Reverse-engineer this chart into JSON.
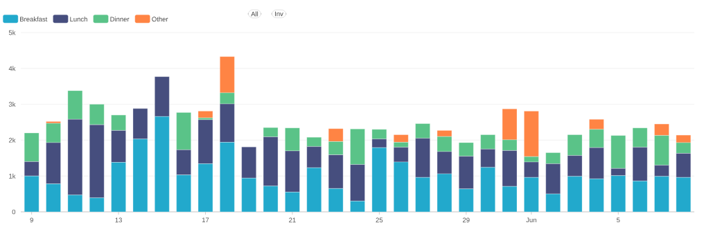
{
  "chart_data": {
    "type": "bar",
    "stacked": true,
    "categories": [
      "9",
      null,
      null,
      null,
      "13",
      null,
      null,
      null,
      "17",
      null,
      null,
      null,
      "21",
      null,
      null,
      null,
      "25",
      null,
      null,
      null,
      "29",
      null,
      null,
      "Jun",
      null,
      null,
      null,
      "5",
      null,
      null,
      null
    ],
    "series": [
      {
        "name": "Breakfast",
        "color": "#22a9cc",
        "values": [
          1000,
          780,
          470,
          390,
          1380,
          2030,
          2660,
          1030,
          1340,
          1940,
          940,
          720,
          550,
          1230,
          650,
          300,
          1790,
          1390,
          960,
          1060,
          640,
          1240,
          710,
          960,
          500,
          990,
          920,
          1010,
          860,
          990,
          960
        ]
      },
      {
        "name": "Lunch",
        "color": "#464e7e",
        "values": [
          400,
          1150,
          2110,
          2040,
          890,
          850,
          1110,
          700,
          1230,
          1070,
          870,
          1370,
          1150,
          590,
          940,
          1020,
          240,
          410,
          1090,
          620,
          910,
          510,
          1000,
          430,
          840,
          580,
          870,
          200,
          940,
          310,
          670
        ]
      },
      {
        "name": "Dinner",
        "color": "#5ac388",
        "values": [
          800,
          540,
          800,
          570,
          430,
          0,
          0,
          1040,
          50,
          310,
          0,
          260,
          640,
          260,
          370,
          990,
          270,
          140,
          410,
          420,
          380,
          400,
          300,
          150,
          310,
          580,
          510,
          920,
          540,
          830,
          300
        ]
      },
      {
        "name": "Other",
        "color": "#ff8444",
        "values": [
          0,
          50,
          0,
          0,
          0,
          0,
          0,
          0,
          190,
          1010,
          0,
          0,
          0,
          0,
          360,
          0,
          0,
          210,
          0,
          170,
          0,
          0,
          860,
          1270,
          0,
          0,
          280,
          0,
          0,
          320,
          210
        ]
      }
    ],
    "ylim": [
      0,
      5000
    ],
    "yticks": [
      0,
      {
        "value": 1000,
        "label": "1k"
      },
      {
        "value": 2000,
        "label": "2k"
      },
      {
        "value": 3000,
        "label": "3k"
      },
      {
        "value": 4000,
        "label": "4k"
      },
      {
        "value": 5000,
        "label": "5k"
      }
    ],
    "grid": "y",
    "legend": "top left",
    "annotations": [
      "All",
      "Inv"
    ]
  }
}
